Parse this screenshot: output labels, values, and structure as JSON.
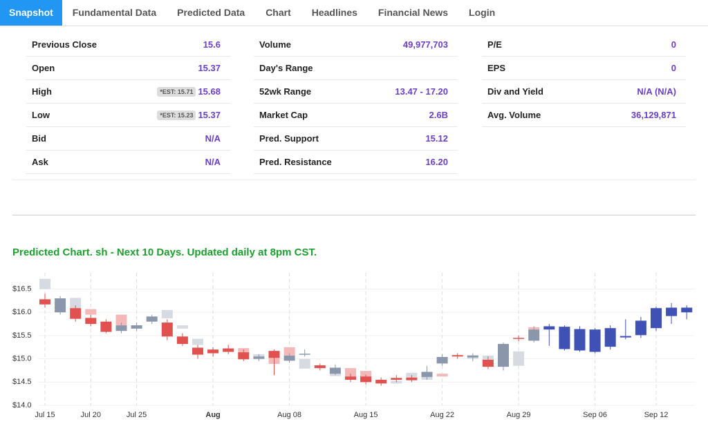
{
  "tabs": [
    "Snapshot",
    "Fundamental Data",
    "Predicted Data",
    "Chart",
    "Headlines",
    "Financial News",
    "Login"
  ],
  "stats": {
    "columns": [
      [
        {
          "label": "Previous Close",
          "value": "15.6"
        },
        {
          "label": "Open",
          "value": "15.37"
        },
        {
          "label": "High",
          "value": "15.68",
          "est": "*EST: 15.71"
        },
        {
          "label": "Low",
          "value": "15.37",
          "est": "*EST: 15.23"
        },
        {
          "label": "Bid",
          "value": "N/A"
        },
        {
          "label": "Ask",
          "value": "N/A"
        }
      ],
      [
        {
          "label": "Volume",
          "value": "49,977,703"
        },
        {
          "label": "Day's Range",
          "value": ""
        },
        {
          "label": "52wk Range",
          "value": "13.47 - 17.20"
        },
        {
          "label": "Market Cap",
          "value": "2.6B"
        },
        {
          "label": "Pred. Support",
          "value": "15.12"
        },
        {
          "label": "Pred. Resistance",
          "value": "16.20"
        }
      ],
      [
        {
          "label": "P/E",
          "value": "0"
        },
        {
          "label": "EPS",
          "value": "0"
        },
        {
          "label": "Div and Yield",
          "value": "N/A (N/A)"
        },
        {
          "label": "Avg. Volume",
          "value": "36,129,871"
        }
      ]
    ]
  },
  "chart_data": {
    "type": "candlestick",
    "title": "Predicted Chart. sh - Next 10 Days. Updated daily at 8pm CST.",
    "categories": [
      "Jul 15",
      null,
      null,
      "Jul 20",
      null,
      null,
      "Jul 25",
      null,
      null,
      null,
      null,
      "Aug",
      null,
      null,
      null,
      null,
      "Aug 08",
      null,
      null,
      null,
      null,
      "Aug 15",
      null,
      null,
      null,
      null,
      "Aug 22",
      null,
      null,
      null,
      null,
      "Aug 29",
      null,
      null,
      null,
      null,
      "Sep 06",
      null,
      null,
      null,
      "Sep 12",
      null,
      null
    ],
    "ylim": [
      14,
      16.85
    ],
    "yticks": [
      {
        "value": 14.0,
        "label": "$14.0"
      },
      {
        "value": 14.5,
        "label": "$14.5"
      },
      {
        "value": 15.0,
        "label": "$15.0"
      },
      {
        "value": 15.5,
        "label": "$15.5"
      },
      {
        "value": 16.0,
        "label": "$16.0"
      },
      {
        "value": 16.5,
        "label": "$16.5"
      }
    ],
    "grid": true,
    "series": [
      {
        "increasing_color": "#d6dae1",
        "decreasing_color": "#f3b9b8",
        "open": [
          16.5,
          null,
          16.09,
          16.07,
          null,
          15.95,
          15.65,
          null,
          15.87,
          15.65,
          15.3,
          null,
          15.23,
          15.23,
          14.99,
          15.02,
          15.25,
          14.79,
          null,
          14.63,
          14.8,
          14.74,
          null,
          14.47,
          14.61,
          14.55,
          14.68,
          null,
          15.0,
          14.98,
          14.83,
          14.85,
          15.68,
          null,
          null,
          null,
          null,
          null,
          null,
          null,
          null,
          null,
          null
        ],
        "close": [
          16.72,
          null,
          16.31,
          15.95,
          null,
          15.72,
          15.72,
          null,
          16.05,
          15.72,
          15.43,
          null,
          15.15,
          15.1,
          15.1,
          14.89,
          15.07,
          15.0,
          null,
          14.75,
          14.62,
          14.56,
          null,
          14.53,
          14.7,
          14.62,
          14.62,
          null,
          15.08,
          15.07,
          14.98,
          15.16,
          15.63,
          null,
          null,
          null,
          null,
          null,
          null,
          null,
          null,
          null,
          null
        ]
      },
      {
        "increasing_color": "#8a97ab",
        "decreasing_color": "#e0524f",
        "open": [
          16.28,
          16.0,
          16.09,
          15.88,
          15.8,
          15.6,
          15.65,
          15.8,
          15.78,
          15.48,
          15.24,
          15.2,
          15.22,
          15.14,
          15.0,
          15.17,
          14.96,
          15.1,
          14.86,
          14.68,
          14.62,
          14.62,
          14.55,
          14.59,
          14.6,
          14.61,
          14.9,
          15.08,
          15.03,
          14.98,
          14.83,
          15.45,
          15.39,
          null,
          null,
          null,
          null,
          null,
          null,
          null,
          null,
          null,
          null
        ],
        "close": [
          16.17,
          16.3,
          15.86,
          15.75,
          15.58,
          15.72,
          15.72,
          15.91,
          15.48,
          15.32,
          15.09,
          15.12,
          15.15,
          14.99,
          15.05,
          15.02,
          15.07,
          15.11,
          14.8,
          14.81,
          14.55,
          14.5,
          14.47,
          14.55,
          14.54,
          14.72,
          15.04,
          15.05,
          15.07,
          14.83,
          15.32,
          15.43,
          15.63,
          null,
          null,
          null,
          null,
          null,
          null,
          null,
          null,
          null,
          null
        ],
        "high": [
          16.4,
          16.35,
          16.15,
          15.95,
          15.85,
          15.78,
          15.78,
          15.95,
          15.85,
          15.55,
          15.3,
          15.25,
          15.3,
          15.2,
          15.1,
          15.2,
          15.12,
          15.2,
          14.9,
          14.88,
          14.68,
          14.66,
          14.6,
          14.65,
          14.65,
          14.85,
          15.1,
          15.12,
          15.12,
          15.05,
          15.35,
          15.5,
          15.7,
          null,
          null,
          null,
          null,
          null,
          null,
          null,
          null,
          null,
          null
        ],
        "low": [
          16.1,
          15.95,
          15.8,
          15.7,
          15.55,
          15.55,
          15.6,
          15.75,
          15.4,
          15.28,
          15.0,
          15.05,
          15.1,
          14.95,
          14.95,
          14.65,
          14.92,
          15.05,
          14.75,
          14.65,
          14.5,
          14.45,
          14.42,
          14.5,
          14.5,
          14.55,
          14.85,
          15.0,
          14.95,
          14.78,
          14.75,
          15.38,
          15.35,
          null,
          null,
          null,
          null,
          null,
          null,
          null,
          null,
          null,
          null
        ]
      },
      {
        "increasing_color": "#3f51b5",
        "decreasing_color": "#3f51b5",
        "open": [
          null,
          null,
          null,
          null,
          null,
          null,
          null,
          null,
          null,
          null,
          null,
          null,
          null,
          null,
          null,
          null,
          null,
          null,
          null,
          null,
          null,
          null,
          null,
          null,
          null,
          null,
          null,
          null,
          null,
          null,
          null,
          null,
          null,
          15.7,
          15.69,
          15.64,
          15.63,
          15.26,
          15.46,
          15.51,
          15.66,
          15.92,
          16.0
        ],
        "close": [
          null,
          null,
          null,
          null,
          null,
          null,
          null,
          null,
          null,
          null,
          null,
          null,
          null,
          null,
          null,
          null,
          null,
          null,
          null,
          null,
          null,
          null,
          null,
          null,
          null,
          null,
          null,
          null,
          null,
          null,
          null,
          null,
          null,
          15.63,
          15.21,
          15.18,
          15.15,
          15.66,
          15.49,
          15.82,
          16.09,
          16.1,
          16.1
        ],
        "high": [
          null,
          null,
          null,
          null,
          null,
          null,
          null,
          null,
          null,
          null,
          null,
          null,
          null,
          null,
          null,
          null,
          null,
          null,
          null,
          null,
          null,
          null,
          null,
          null,
          null,
          null,
          null,
          null,
          null,
          null,
          null,
          null,
          null,
          15.75,
          15.72,
          15.7,
          15.66,
          15.72,
          15.85,
          15.9,
          16.12,
          16.2,
          16.15
        ],
        "low": [
          null,
          null,
          null,
          null,
          null,
          null,
          null,
          null,
          null,
          null,
          null,
          null,
          null,
          null,
          null,
          null,
          null,
          null,
          null,
          null,
          null,
          null,
          null,
          null,
          null,
          null,
          null,
          null,
          null,
          null,
          null,
          null,
          null,
          15.28,
          15.18,
          15.15,
          15.12,
          15.2,
          15.42,
          15.45,
          15.6,
          15.75,
          15.85
        ]
      }
    ]
  }
}
